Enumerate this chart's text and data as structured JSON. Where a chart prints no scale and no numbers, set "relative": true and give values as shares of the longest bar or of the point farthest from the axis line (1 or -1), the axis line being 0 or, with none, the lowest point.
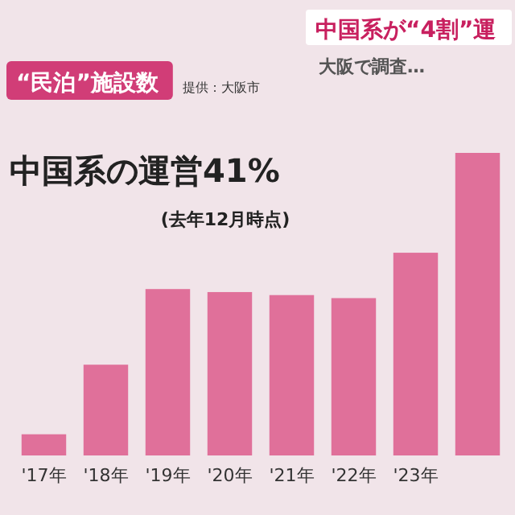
{
  "chart_data": {
    "type": "bar",
    "relative": true,
    "title": "“民泊”施設数",
    "subtitle": "中国系が“4割”運",
    "annotations": [
      "大阪で調査…",
      "提供：大阪市",
      "中国系の運営41%",
      "(去年12月時点)"
    ],
    "categories": [
      "'17年",
      "'18年",
      "'19年",
      "'20年",
      "'21年",
      "'22年",
      "'23年",
      null
    ],
    "values": [
      0.07,
      0.3,
      0.55,
      0.54,
      0.53,
      0.52,
      0.67,
      1
    ],
    "color": "#e0709a"
  }
}
